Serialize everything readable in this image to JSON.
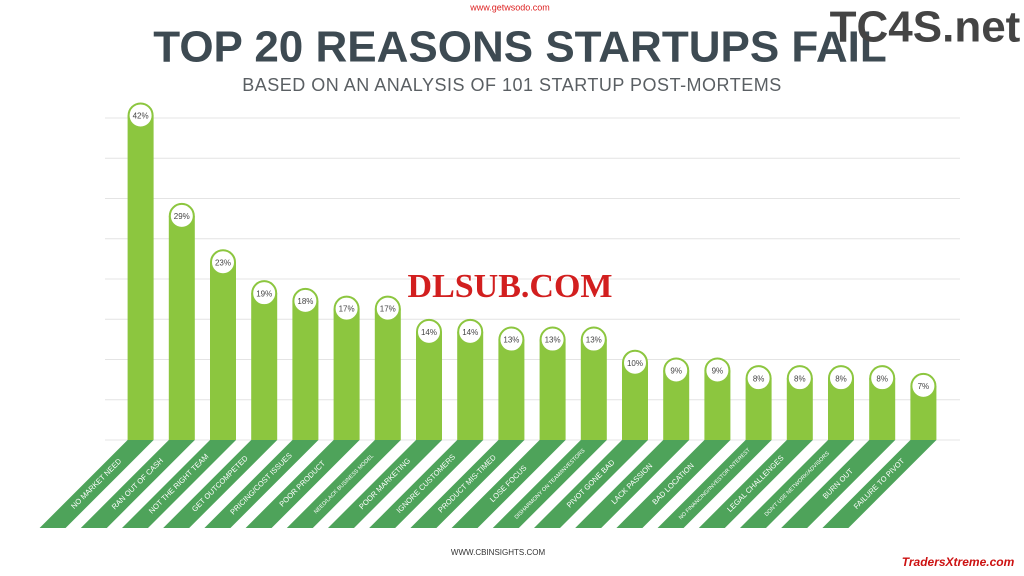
{
  "chart_data": {
    "type": "bar",
    "title": "TOP 20 REASONS STARTUPS FAIL",
    "subtitle": "BASED ON AN ANALYSIS OF 101 STARTUP POST-MORTEMS",
    "source": "WWW.CBINSIGHTS.COM",
    "categories": [
      "NO MARKET NEED",
      "RAN OUT OF CASH",
      "NOT THE RIGHT TEAM",
      "GET OUTCOMPETED",
      "PRICING/COST ISSUES",
      "POOR PRODUCT",
      "NEED/LACK BUSINESS MODEL",
      "POOR MARKETING",
      "IGNORE CUSTOMERS",
      "PRODUCT MIS-TIMED",
      "LOSE FOCUS",
      "DISHARMONY ON TEAM/INVESTORS",
      "PIVOT GONE BAD",
      "LACK PASSION",
      "BAD LOCATION",
      "NO FINANCING/INVESTOR INTEREST",
      "LEGAL CHALLENGES",
      "DON'T USE NETWORK/ADVISORS",
      "BURN OUT",
      "FAILURE TO PIVOT"
    ],
    "values": [
      42,
      29,
      23,
      19,
      18,
      17,
      17,
      14,
      14,
      13,
      13,
      13,
      10,
      9,
      9,
      8,
      8,
      8,
      8,
      7
    ],
    "value_labels": [
      "42%",
      "29%",
      "23%",
      "19%",
      "18%",
      "17%",
      "17%",
      "14%",
      "14%",
      "13%",
      "13%",
      "13%",
      "10%",
      "9%",
      "9%",
      "8%",
      "8%",
      "8%",
      "8%",
      "7%"
    ],
    "color": "#8cc63f",
    "label_color": "#4ea35a",
    "ylim": [
      0,
      44
    ],
    "grid": true,
    "watermarks": [
      "www.getwsodo.com",
      "TC4S.net",
      "DLSUB.COM",
      "TradersXtreme.com"
    ]
  }
}
